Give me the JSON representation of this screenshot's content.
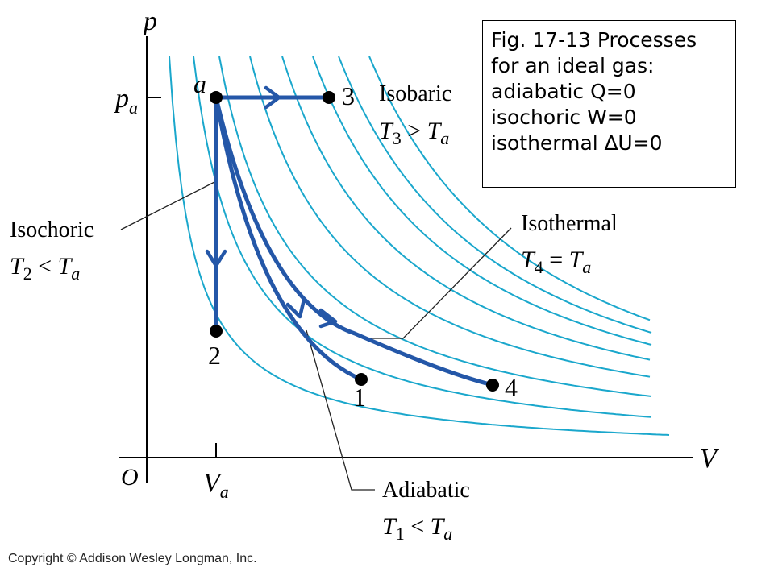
{
  "axes": {
    "p": "p",
    "V": "V",
    "origin": "O",
    "pa_main": "p",
    "pa_sub": "a",
    "Va_main": "V",
    "Va_sub": "a"
  },
  "points": {
    "a": "a",
    "p1": "1",
    "p2": "2",
    "p3": "3",
    "p4": "4"
  },
  "labels": {
    "isobaric": {
      "title": "Isobaric",
      "T": "T",
      "Tsub": "3",
      "rel": " > ",
      "T2": "T",
      "T2sub": "a"
    },
    "isochoric": {
      "title": "Isochoric",
      "T": "T",
      "Tsub": "2",
      "rel": " < ",
      "T2": "T",
      "T2sub": "a"
    },
    "isothermal": {
      "title": "Isothermal",
      "T": "T",
      "Tsub": "4",
      "rel": " = ",
      "T2": "T",
      "T2sub": "a"
    },
    "adiabatic": {
      "title": "Adiabatic",
      "T": "T",
      "Tsub": "1",
      "rel": " < ",
      "T2": "T",
      "T2sub": "a"
    }
  },
  "caption": {
    "line1": "Fig. 17-13 Processes",
    "line2": "for an ideal gas:",
    "line3": "adiabatic Q=0",
    "line4": "isochoric W=0",
    "line5": "isothermal ∆U=0"
  },
  "copyright": "Copyright © Addison Wesley Longman, Inc.",
  "colors": {
    "isotherms": "#1aa7cc",
    "process": "#2457a8",
    "axes": "#000000"
  }
}
